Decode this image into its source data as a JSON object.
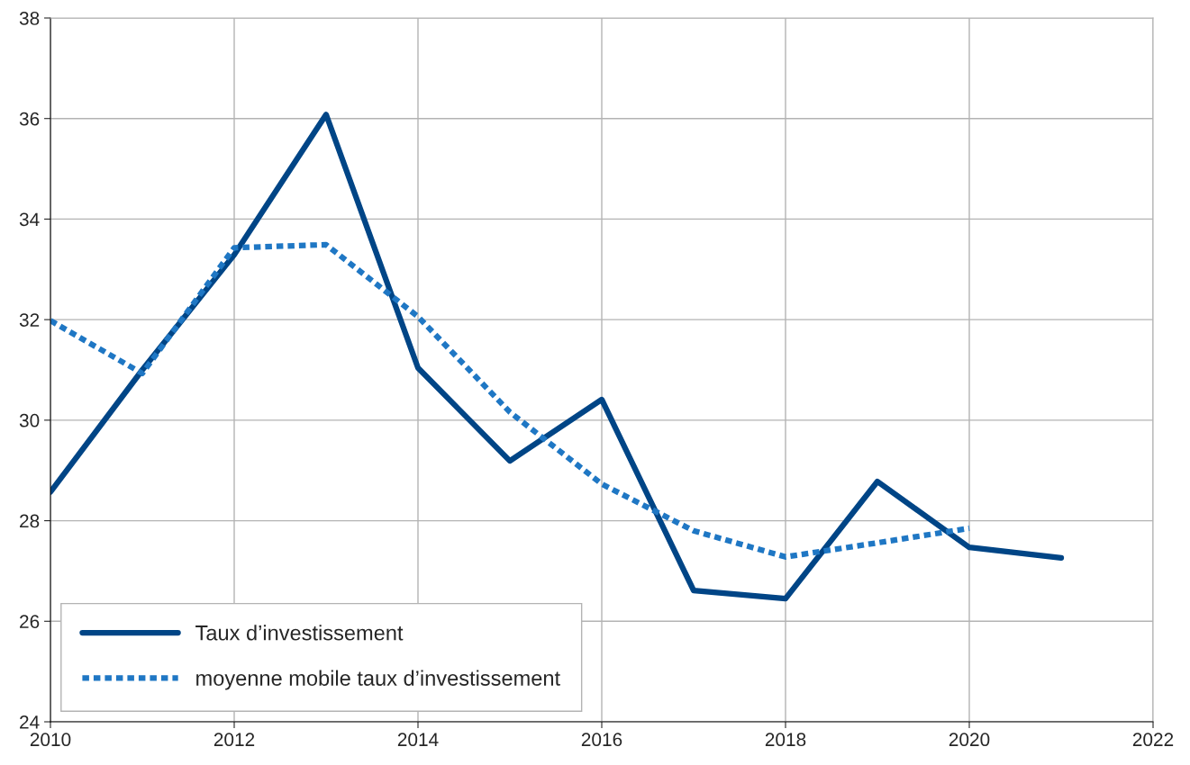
{
  "chart_data": {
    "type": "line",
    "x": [
      2010,
      2011,
      2012,
      2013,
      2014,
      2015,
      2016,
      2017,
      2018,
      2019,
      2020,
      2021
    ],
    "series": [
      {
        "name": "Taux d’investissement",
        "color": "#004586",
        "line_style": "solid",
        "values": [
          28.57,
          31.0,
          33.29,
          36.08,
          31.04,
          29.19,
          30.41,
          26.61,
          26.45,
          28.78,
          27.47,
          27.26
        ]
      },
      {
        "name": "moyenne mobile taux d’investissement",
        "color": "#1f77c4",
        "line_style": "dashed",
        "values": [
          31.98,
          30.93,
          33.43,
          33.49,
          32.06,
          30.16,
          28.73,
          27.8,
          27.28,
          27.56,
          27.85,
          null
        ]
      }
    ],
    "xlim": [
      2010,
      2022
    ],
    "xticks": [
      2010,
      2012,
      2014,
      2016,
      2018,
      2020,
      2022
    ],
    "ylim": [
      24,
      38
    ],
    "yticks": [
      24,
      26,
      28,
      30,
      32,
      34,
      36,
      38
    ],
    "grid": true,
    "legend": "bottom left",
    "marker": "none"
  }
}
